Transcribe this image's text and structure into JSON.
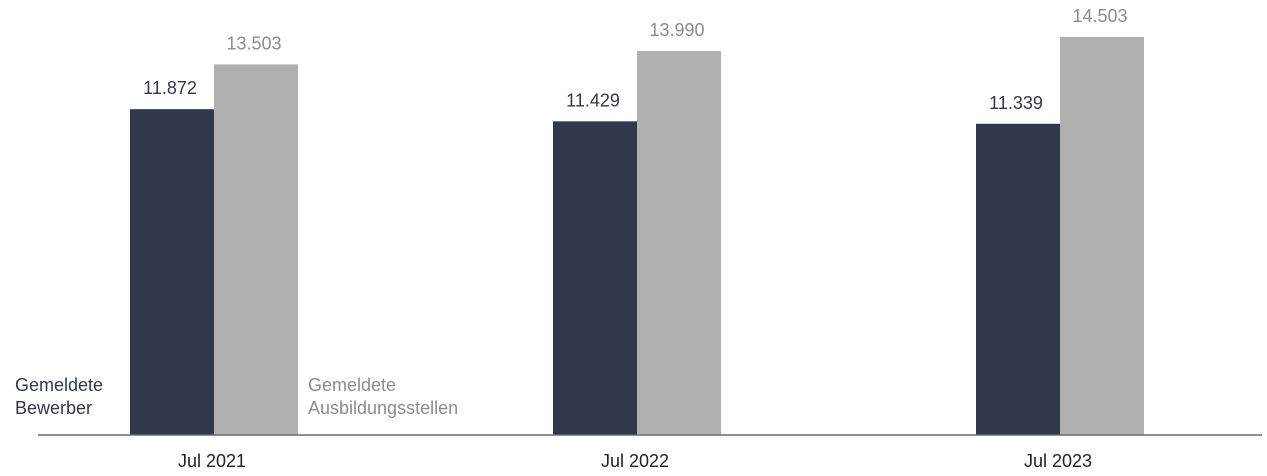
{
  "chart_data": {
    "type": "bar",
    "categories": [
      "Jul 2021",
      "Jul 2022",
      "Jul 2023"
    ],
    "series": [
      {
        "name": "Gemeldete Bewerber",
        "label_lines": [
          "Gemeldete",
          "Bewerber"
        ],
        "values": [
          11872,
          11429,
          11339
        ],
        "value_labels": [
          "11.872",
          "11.429",
          "11.339"
        ],
        "color": "#30384c",
        "label_color": "#30384c"
      },
      {
        "name": "Gemeldete Ausbildungsstellen",
        "label_lines": [
          "Gemeldete",
          "Ausbildungsstellen"
        ],
        "values": [
          13503,
          13990,
          14503
        ],
        "value_labels": [
          "13.503",
          "13.990",
          "14.503"
        ],
        "color": "#b0b0b0",
        "label_color": "#8c8c8c"
      }
    ],
    "ylim": [
      0,
      15850
    ],
    "grid": false,
    "legend": "inline-bottom-left",
    "axis_color": "#6b6b6b",
    "tick_label_color": "#222222"
  }
}
